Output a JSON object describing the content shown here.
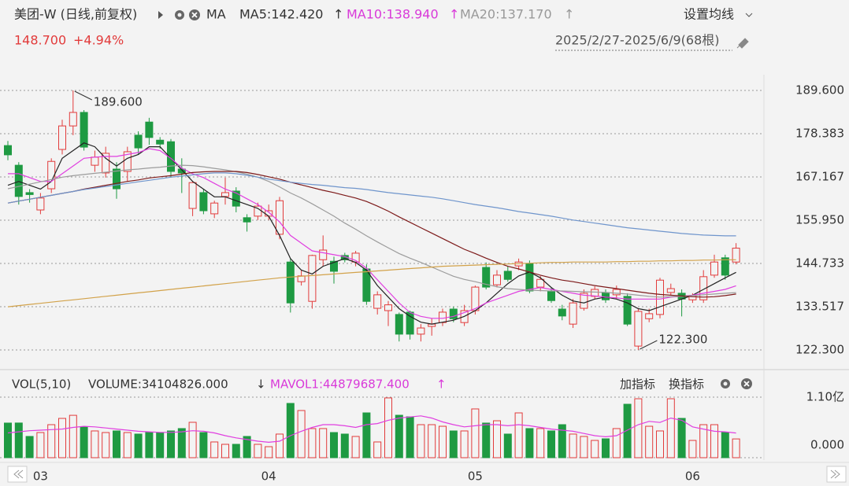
{
  "header": {
    "title": "美团-W (日线,前复权)",
    "ma_label": "MA",
    "ma_values": [
      {
        "text": "MA5:142.420",
        "arrow": "↑"
      },
      {
        "text": "MA10:138.940",
        "arrow": "↑"
      },
      {
        "text": "MA20:137.170",
        "arrow": "↑"
      }
    ],
    "settings": "设置均线",
    "price": "148.700",
    "change": "+4.94%",
    "range": "2025/2/27-2025/6/9(68根)"
  },
  "volume_header": {
    "indicator": "VOL(5,10)",
    "volume": "VOLUME:34104826.000",
    "volume_arrow": "↓",
    "mavol": "MAVOL1:44879687.400",
    "mavol_arrow": "↑",
    "add": "加指标",
    "switch": "换指标"
  },
  "chart_data": [
    {
      "type": "candlestick",
      "categories": [
        null,
        null,
        null,
        "03",
        null,
        null,
        null,
        null,
        null,
        null,
        null,
        null,
        null,
        null,
        null,
        null,
        null,
        null,
        null,
        null,
        null,
        null,
        null,
        null,
        "04",
        null,
        null,
        null,
        null,
        null,
        null,
        null,
        null,
        null,
        null,
        null,
        null,
        null,
        null,
        null,
        null,
        null,
        null,
        "05",
        null,
        null,
        null,
        null,
        null,
        null,
        null,
        null,
        null,
        null,
        null,
        null,
        null,
        null,
        null,
        null,
        null,
        null,
        null,
        "06",
        null,
        null,
        null,
        null
      ],
      "open": [
        175.3,
        170.2,
        163.1,
        158.6,
        164.1,
        174.3,
        180.4,
        183.9,
        170.2,
        168.2,
        169.2,
        168.6,
        178,
        181.4,
        176.7,
        176.3,
        169.2,
        159,
        163.1,
        157.6,
        162.1,
        163.5,
        156.6,
        157,
        157,
        152.3,
        145.1,
        140,
        134.9,
        145.7,
        145.3,
        146.8,
        145.1,
        143.3,
        133.1,
        132.5,
        131.5,
        132.1,
        126.4,
        128.4,
        129.4,
        132.9,
        129.4,
        132.5,
        143.7,
        139.2,
        142.7,
        144.1,
        144.7,
        138.6,
        137.6,
        132.9,
        129,
        133.1,
        136.2,
        137.2,
        136.6,
        136.2,
        123.3,
        130.4,
        131.5,
        137.2,
        137,
        135.3,
        135.3,
        141.7,
        146.2,
        145.1
      ],
      "high": [
        176.5,
        171,
        164,
        163,
        172,
        182,
        189.6,
        184.5,
        174,
        175,
        171,
        175,
        179,
        182.5,
        177.5,
        177,
        172,
        166,
        164,
        161,
        167,
        164.5,
        157.5,
        160.5,
        160,
        162,
        146,
        143,
        147,
        152,
        146.5,
        147.5,
        148,
        144.5,
        137.5,
        135,
        132,
        132.5,
        129,
        130.5,
        133,
        133.5,
        134,
        139,
        145,
        143,
        144,
        146,
        145.5,
        141.5,
        138.5,
        134,
        135.5,
        138,
        138.8,
        138,
        139,
        137,
        133,
        133,
        141,
        139.5,
        138,
        137,
        143,
        147,
        147,
        150
      ],
      "low": [
        171.5,
        160,
        160.5,
        157.5,
        163,
        173,
        178,
        174,
        168.5,
        167,
        161.5,
        166,
        173,
        175.5,
        174.5,
        167,
        163,
        157,
        157.5,
        156.5,
        160,
        158,
        153,
        156,
        156,
        151,
        132,
        139,
        133,
        144,
        139.5,
        145,
        144,
        134,
        131.5,
        128.5,
        124.5,
        125,
        124.5,
        126,
        128.5,
        129.5,
        128.5,
        131.5,
        138,
        138.5,
        140,
        143,
        137,
        137.5,
        134.5,
        130,
        128,
        132.5,
        135.5,
        134.5,
        135.5,
        128.5,
        122.3,
        129.5,
        130.5,
        136.5,
        131,
        134.5,
        134.5,
        141,
        140.5,
        144.5
      ],
      "close": [
        172.9,
        162.1,
        162.6,
        161.7,
        171.2,
        180.4,
        183.9,
        174.9,
        172.3,
        173.3,
        164.1,
        173.7,
        174.7,
        177.4,
        175.7,
        168.6,
        168.2,
        165.7,
        158.4,
        160.4,
        163.1,
        159.6,
        155.5,
        159.6,
        158.4,
        161,
        134.5,
        141.5,
        146.8,
        148.2,
        142.7,
        145.7,
        147.4,
        134.9,
        136.6,
        134,
        126.4,
        126.4,
        128,
        129,
        132.1,
        130.4,
        132.5,
        138.6,
        138.6,
        141.7,
        140.6,
        145.1,
        137.6,
        140.6,
        135.1,
        131.1,
        134.5,
        137,
        138,
        135.3,
        138,
        129,
        132.3,
        131.7,
        140.4,
        138.2,
        135.5,
        136.4,
        141.3,
        145.1,
        141.7,
        148.7
      ],
      "up_color": "#e23b3b",
      "down_color": "#1e9a42",
      "ylim": [
        118.22,
        193.68
      ],
      "yticks": [
        {
          "value": 189.6,
          "label": "189.600"
        },
        {
          "value": 178.383,
          "label": "178.383"
        },
        {
          "value": 167.167,
          "label": "167.167"
        },
        {
          "value": 155.95,
          "label": "155.950"
        },
        {
          "value": 144.733,
          "label": "144.733"
        },
        {
          "value": 133.517,
          "label": "133.517"
        },
        {
          "value": 122.3,
          "label": "122.300"
        }
      ],
      "grid": true,
      "lines": [
        {
          "color": "#222222",
          "values": [
            165,
            166,
            165,
            164,
            166,
            172,
            174,
            176,
            175,
            172,
            170,
            172,
            173,
            175,
            175,
            172,
            169,
            166,
            164,
            162,
            162,
            161,
            160,
            159,
            157,
            152,
            146,
            143,
            142,
            144,
            145,
            146,
            145,
            143,
            139,
            136,
            133,
            131,
            129.5,
            129,
            129.5,
            130,
            131,
            132.5,
            134.5,
            137,
            139.5,
            141.5,
            142.5,
            141,
            138.5,
            136.5,
            135,
            134.5,
            135.5,
            136,
            135.5,
            134.5,
            133,
            132.5,
            133.5,
            134.5,
            135.5,
            136.5,
            138,
            139.5,
            141,
            142.42
          ]
        },
        {
          "color": "#e03fe0",
          "values": [
            168,
            168,
            167,
            166,
            166,
            168,
            170,
            172,
            172.3,
            172.5,
            172.5,
            173,
            173.5,
            174.5,
            174,
            172,
            169.5,
            168,
            167,
            165.5,
            164,
            163,
            161.5,
            160,
            158,
            155.5,
            152,
            150,
            148,
            147.5,
            147,
            146.5,
            145.5,
            143.5,
            140.5,
            137.5,
            134.5,
            132,
            131,
            130.5,
            130.5,
            131,
            132,
            133,
            134.5,
            135.5,
            136.5,
            137.5,
            138,
            138.5,
            138,
            137.5,
            137,
            136.5,
            136.3,
            136,
            135.8,
            135.5,
            135.5,
            135.5,
            135.5,
            136,
            136.2,
            136.5,
            137,
            137.5,
            138,
            138.94
          ]
        },
        {
          "color": "#9c9c9c",
          "values": [
            164.1,
            164.7,
            165.3,
            165.9,
            166.5,
            167.1,
            167.5,
            167.8,
            168.1,
            168.4,
            168.7,
            169,
            169.2,
            169.5,
            169.7,
            170,
            170.2,
            170.1,
            169.8,
            169.4,
            169,
            168.5,
            167.9,
            167.1,
            166,
            164.6,
            163,
            161.7,
            160.2,
            158.6,
            157,
            155.2,
            153.6,
            151.9,
            150.3,
            148.8,
            147.3,
            146.1,
            145,
            143.8,
            142.6,
            141.4,
            140.6,
            140,
            139.3,
            138.7,
            138.2,
            138,
            137.8,
            137.7,
            137.6,
            137.6,
            137.5,
            137.4,
            137.3,
            137.2,
            137,
            136.8,
            136.5,
            136.2,
            136,
            136.1,
            136.2,
            136.4,
            136.6,
            136.8,
            137,
            137.17
          ]
        },
        {
          "color": "#7d1a1a",
          "values": [
            160.4,
            160.9,
            161.4,
            161.9,
            162.4,
            162.9,
            163.4,
            164,
            164.5,
            165,
            165.5,
            166,
            166.4,
            166.9,
            167.2,
            167.5,
            167.9,
            168.3,
            168.5,
            168.6,
            168.6,
            168.6,
            168.3,
            167.8,
            167.2,
            166.6,
            165.8,
            165.1,
            164.4,
            163.7,
            163.1,
            162.4,
            161.7,
            160.8,
            159.6,
            158.3,
            156.8,
            155.4,
            154,
            152.6,
            151.2,
            149.8,
            148.4,
            147.3,
            146.1,
            145,
            144,
            143.3,
            142.5,
            141.7,
            141,
            140.4,
            140,
            139.5,
            139,
            138.6,
            138.2,
            137.8,
            137.4,
            137,
            136.7,
            136.5,
            136.3,
            136.1,
            136,
            136.1,
            136.4,
            136.8
          ]
        },
        {
          "color": "#6f95cc",
          "values": [
            160.4,
            160.9,
            161.4,
            161.9,
            162.4,
            162.9,
            163.4,
            163.9,
            164.3,
            164.7,
            165.1,
            165.5,
            165.9,
            166.3,
            166.7,
            167.1,
            167.4,
            167.7,
            168,
            168.2,
            168.2,
            168,
            167.6,
            167.1,
            166.6,
            166.2,
            165.8,
            165.5,
            165.2,
            165,
            164.7,
            164.4,
            164.2,
            163.9,
            163.5,
            163.1,
            162.8,
            162.5,
            162.2,
            161.9,
            161.5,
            161,
            160.5,
            160,
            159.6,
            159.2,
            158.7,
            158.2,
            157.8,
            157.4,
            157,
            156.5,
            156,
            155.6,
            155.2,
            154.8,
            154.4,
            154,
            153.7,
            153.4,
            153.1,
            152.8,
            152.5,
            152.3,
            152.1,
            152,
            151.9,
            151.9
          ]
        },
        {
          "color": "#d2a24a",
          "values": [
            133.5,
            133.8,
            134.1,
            134.4,
            134.7,
            135,
            135.3,
            135.6,
            135.9,
            136.2,
            136.5,
            136.8,
            137.1,
            137.4,
            137.7,
            138,
            138.3,
            138.6,
            138.9,
            139.2,
            139.5,
            139.8,
            140.1,
            140.4,
            140.7,
            141,
            141.2,
            141.4,
            141.6,
            141.8,
            142,
            142.2,
            142.4,
            142.6,
            142.8,
            143,
            143.2,
            143.4,
            143.6,
            143.8,
            144,
            144.1,
            144.2,
            144.3,
            144.4,
            144.5,
            144.6,
            144.7,
            144.8,
            144.9,
            145,
            145,
            145.1,
            145.1,
            145.1,
            145.1,
            145.2,
            145.2,
            145.3,
            145.3,
            145.4,
            145.4,
            145.5,
            145.5,
            145.6,
            145.6,
            145.7,
            145.7
          ]
        }
      ],
      "annotations": [
        {
          "text": "189.600"
        },
        {
          "text": "122.300"
        }
      ]
    },
    {
      "type": "bar",
      "values": [
        62900000,
        63000000,
        38600000,
        45700000,
        60000000,
        71400000,
        77000000,
        55700000,
        48600000,
        45700000,
        48600000,
        45700000,
        42900000,
        45700000,
        45700000,
        48600000,
        52900000,
        64300000,
        45700000,
        28600000,
        24300000,
        24300000,
        38600000,
        24300000,
        20000000,
        42900000,
        98600000,
        85700000,
        52900000,
        52900000,
        45700000,
        42900000,
        38600000,
        81400000,
        28600000,
        108600000,
        77100000,
        74300000,
        60000000,
        60000000,
        57100000,
        48600000,
        48600000,
        88600000,
        62900000,
        67100000,
        42900000,
        81400000,
        52900000,
        52900000,
        48600000,
        60000000,
        42900000,
        38600000,
        31400000,
        34300000,
        52900000,
        97100000,
        107100000,
        57100000,
        48600000,
        107100000,
        71400000,
        31400000,
        60000000,
        60000000,
        45700000,
        34104826
      ],
      "ylim": [
        0,
        110000000
      ],
      "yticks": [
        {
          "value": 110000000,
          "label": "1.10亿"
        },
        {
          "value": 0,
          "label": "0.000"
        }
      ],
      "grid": true,
      "lines": [
        {
          "color": "#e03fe0",
          "values": [
            45000000,
            47000000,
            49000000,
            50000000,
            51000000,
            52000000,
            55000000,
            57000000,
            56000000,
            54000000,
            52000000,
            50000000,
            48000000,
            47000000,
            46000000,
            46000000,
            47000000,
            49000000,
            48000000,
            45000000,
            40000000,
            36000000,
            33000000,
            30000000,
            28000000,
            30000000,
            40000000,
            48000000,
            55000000,
            60000000,
            60000000,
            58000000,
            55000000,
            60000000,
            62000000,
            68000000,
            72000000,
            74000000,
            76000000,
            72000000,
            65000000,
            60000000,
            56000000,
            58000000,
            60000000,
            60000000,
            58000000,
            60000000,
            58000000,
            55000000,
            52000000,
            50000000,
            48000000,
            44000000,
            40000000,
            38000000,
            40000000,
            50000000,
            60000000,
            66000000,
            64000000,
            72000000,
            68000000,
            56000000,
            52000000,
            48000000,
            47000000,
            44879687.4
          ]
        }
      ]
    }
  ]
}
